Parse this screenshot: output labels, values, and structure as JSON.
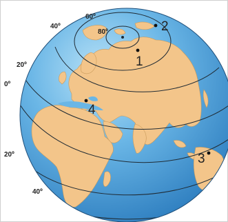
{
  "map": {
    "latitude_labels": {
      "lat_60": "60º",
      "lat_80": "80º",
      "lat_40_top": "40º",
      "lat_20_left": "20º",
      "lat_0": "0º",
      "lat_20_south": "20º",
      "lat_40_south": "40º"
    },
    "points": {
      "p1": "1",
      "p2": "2",
      "p3": "3",
      "p4": "4"
    },
    "colors": {
      "ocean": "#5aa7dc",
      "land": "#f3c58a",
      "lines": "#1f2a33"
    }
  }
}
